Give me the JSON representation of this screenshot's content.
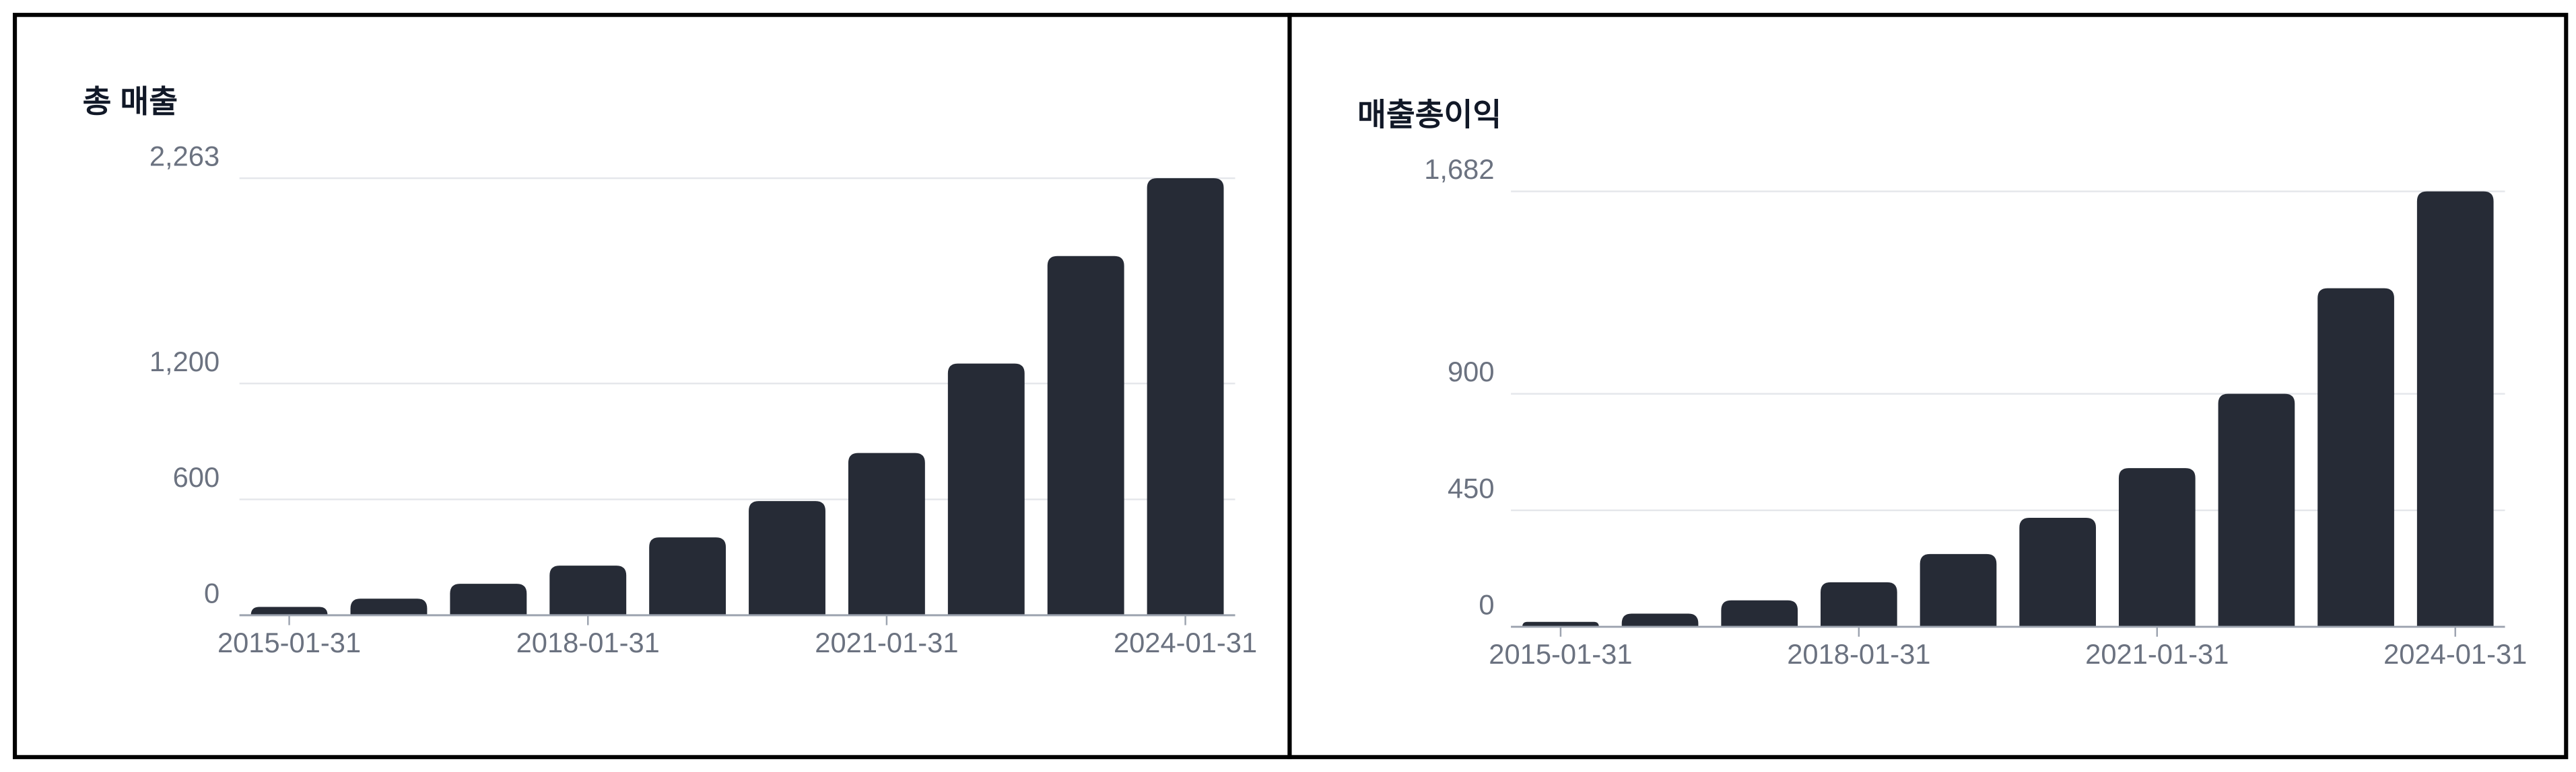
{
  "chart_data": [
    {
      "type": "bar",
      "title": "총 매출",
      "categories": [
        "2015-01-31",
        null,
        null,
        "2018-01-31",
        null,
        null,
        "2021-01-31",
        null,
        null,
        "2024-01-31"
      ],
      "values": [
        43,
        86,
        163,
        257,
        403,
        591,
        840,
        1303,
        1860,
        2263
      ],
      "color": "#262b36",
      "ylim": [
        0,
        2263
      ],
      "yticks": [
        0,
        600,
        {
          "value": 1200,
          "label": "1,200"
        },
        {
          "value": 2263,
          "label": "2,263"
        }
      ],
      "grid": true
    },
    {
      "type": "bar",
      "title": "매출총이익",
      "categories": [
        "2015-01-31",
        null,
        null,
        "2018-01-31",
        null,
        null,
        "2021-01-31",
        null,
        null,
        "2024-01-31"
      ],
      "values": [
        19,
        51,
        102,
        172,
        281,
        421,
        613,
        900,
        1308,
        1682
      ],
      "color": "#262b36",
      "ylim": [
        0,
        1682
      ],
      "yticks": [
        0,
        450,
        900,
        {
          "value": 1682,
          "label": "1,682"
        }
      ],
      "grid": true
    }
  ]
}
